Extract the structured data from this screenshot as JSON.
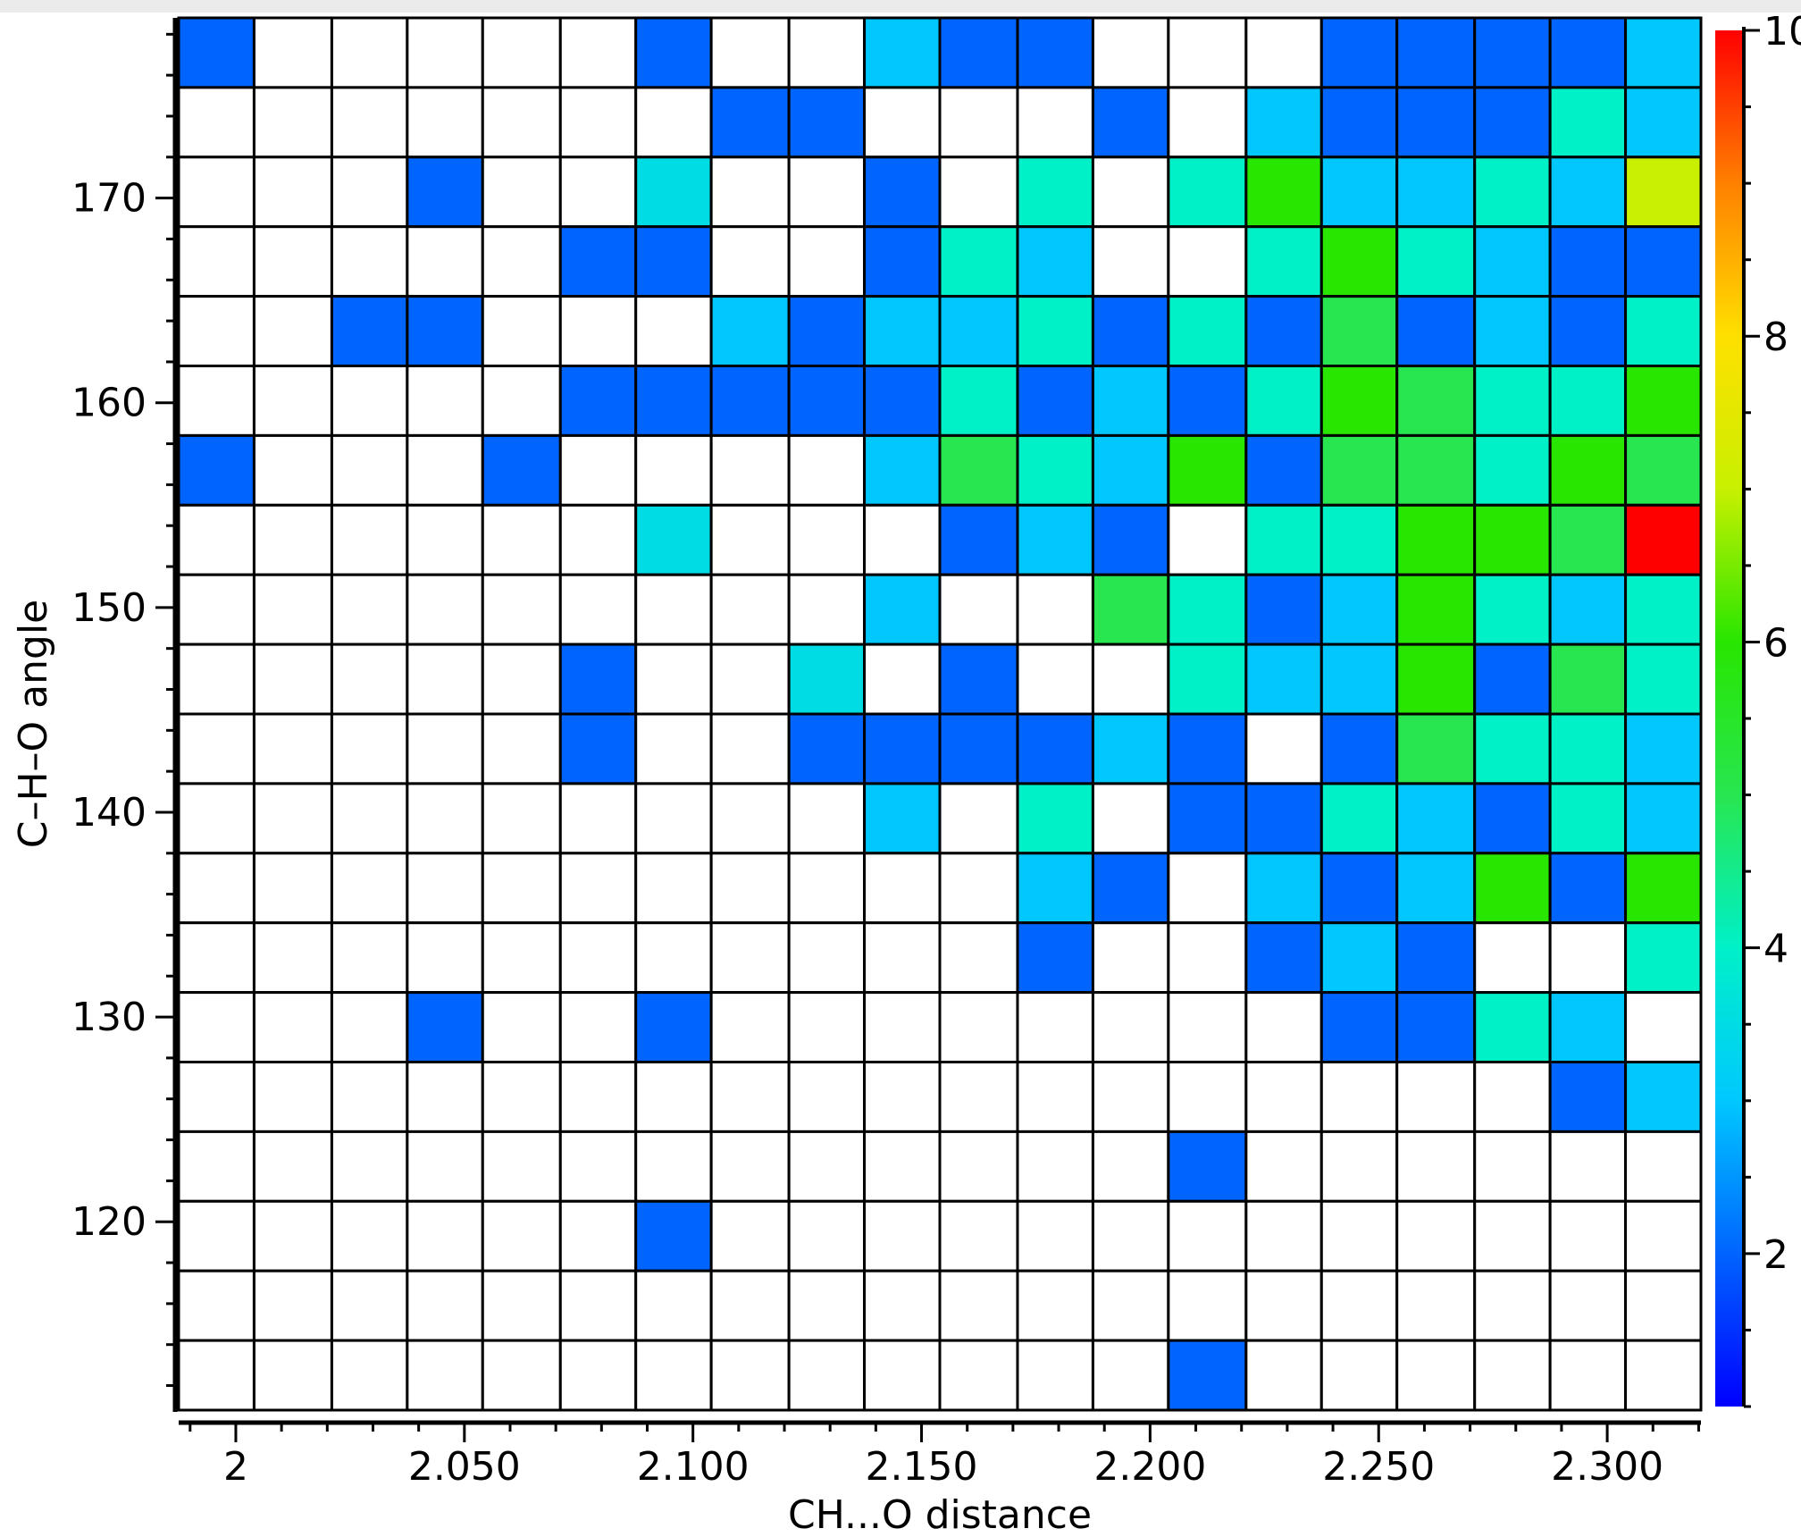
{
  "chart_data": {
    "type": "heatmap",
    "title": "",
    "xlabel": "CH...O distance",
    "ylabel": "C–H–O angle",
    "x_ticks": [
      {
        "value": 2.0,
        "label": "2"
      },
      {
        "value": 2.05,
        "label": "2.050"
      },
      {
        "value": 2.1,
        "label": "2.100"
      },
      {
        "value": 2.15,
        "label": "2.150"
      },
      {
        "value": 2.2,
        "label": "2.200"
      },
      {
        "value": 2.25,
        "label": "2.250"
      },
      {
        "value": 2.3,
        "label": "2.300"
      }
    ],
    "y_ticks": [
      {
        "value": 120,
        "label": "120"
      },
      {
        "value": 130,
        "label": "130"
      },
      {
        "value": 140,
        "label": "140"
      },
      {
        "value": 150,
        "label": "150"
      },
      {
        "value": 160,
        "label": "160"
      },
      {
        "value": 170,
        "label": "170"
      }
    ],
    "x_range": [
      1.9875,
      2.3205
    ],
    "y_range": [
      110.8,
      178.8
    ],
    "x_bin_edges": [
      1.9875,
      2.004,
      2.021,
      2.0375,
      2.054,
      2.071,
      2.0875,
      2.104,
      2.121,
      2.1375,
      2.154,
      2.171,
      2.1875,
      2.204,
      2.221,
      2.2375,
      2.254,
      2.271,
      2.2875,
      2.304,
      2.3205
    ],
    "y_bin_edges": [
      178.8,
      175.4,
      172.0,
      168.6,
      165.2,
      161.8,
      158.4,
      155.0,
      151.6,
      148.2,
      144.8,
      141.4,
      138.0,
      134.6,
      131.2,
      127.8,
      124.4,
      121.0,
      117.6,
      114.2,
      110.8
    ],
    "rows_top_to_bottom": [
      [
        2,
        0,
        0,
        0,
        0,
        0,
        2,
        0,
        0,
        3,
        2,
        2,
        0,
        0,
        0,
        2,
        2,
        2,
        2,
        3
      ],
      [
        0,
        0,
        0,
        0,
        0,
        0,
        0,
        2,
        2,
        0,
        0,
        0,
        2,
        0,
        3,
        2,
        2,
        2,
        4,
        3
      ],
      [
        0,
        0,
        0,
        2,
        0,
        0,
        3.5,
        0,
        0,
        2,
        0,
        4,
        0,
        4,
        6,
        3,
        3,
        4,
        3,
        7
      ],
      [
        0,
        0,
        0,
        0,
        0,
        2,
        2,
        0,
        0,
        2,
        4,
        3,
        0,
        0,
        4,
        6,
        4,
        3,
        2,
        2
      ],
      [
        0,
        0,
        2,
        2,
        0,
        0,
        0,
        3,
        2,
        3,
        3,
        4,
        2,
        4,
        2,
        5,
        2,
        3,
        2,
        4
      ],
      [
        0,
        0,
        0,
        0,
        0,
        2,
        2,
        2,
        2,
        2,
        4,
        2,
        3,
        2,
        4,
        6,
        5,
        4,
        4,
        6
      ],
      [
        2,
        0,
        0,
        0,
        2,
        0,
        0,
        0,
        0,
        3,
        5,
        4,
        3,
        6,
        2,
        5,
        5,
        4,
        6,
        5
      ],
      [
        0,
        0,
        0,
        0,
        0,
        0,
        3.5,
        0,
        0,
        0,
        2,
        3,
        2,
        0,
        4,
        4,
        6,
        6,
        5,
        10
      ],
      [
        0,
        0,
        0,
        0,
        0,
        0,
        0,
        0,
        0,
        3,
        0,
        0,
        5,
        4,
        2,
        3,
        6,
        4,
        3,
        4
      ],
      [
        0,
        0,
        0,
        0,
        0,
        2,
        0,
        0,
        3.5,
        0,
        2,
        0,
        0,
        4,
        3,
        3,
        6,
        2,
        5,
        4
      ],
      [
        0,
        0,
        0,
        0,
        0,
        2,
        0,
        0,
        2,
        2,
        2,
        2,
        3,
        2,
        0,
        2,
        5,
        4,
        4,
        3
      ],
      [
        0,
        0,
        0,
        0,
        0,
        0,
        0,
        0,
        0,
        3,
        0,
        4,
        0,
        2,
        2,
        4,
        3,
        2,
        4,
        3
      ],
      [
        0,
        0,
        0,
        0,
        0,
        0,
        0,
        0,
        0,
        0,
        0,
        3,
        2,
        0,
        3,
        2,
        3,
        6,
        2,
        6
      ],
      [
        0,
        0,
        0,
        0,
        0,
        0,
        0,
        0,
        0,
        0,
        0,
        2,
        0,
        0,
        2,
        3,
        2,
        0,
        0,
        4
      ],
      [
        0,
        0,
        0,
        2,
        0,
        0,
        2,
        0,
        0,
        0,
        0,
        0,
        0,
        0,
        0,
        2,
        2,
        4,
        3,
        0
      ],
      [
        0,
        0,
        0,
        0,
        0,
        0,
        0,
        0,
        0,
        0,
        0,
        0,
        0,
        0,
        0,
        0,
        0,
        0,
        2,
        3
      ],
      [
        0,
        0,
        0,
        0,
        0,
        0,
        0,
        0,
        0,
        0,
        0,
        0,
        0,
        2,
        0,
        0,
        0,
        0,
        0,
        0
      ],
      [
        0,
        0,
        0,
        0,
        0,
        0,
        2,
        0,
        0,
        0,
        0,
        0,
        0,
        0,
        0,
        0,
        0,
        0,
        0,
        0
      ],
      [
        0,
        0,
        0,
        0,
        0,
        0,
        0,
        0,
        0,
        0,
        0,
        0,
        0,
        0,
        0,
        0,
        0,
        0,
        0,
        0
      ],
      [
        0,
        0,
        0,
        0,
        0,
        0,
        0,
        0,
        0,
        0,
        0,
        0,
        0,
        2,
        0,
        0,
        0,
        0,
        0,
        0
      ]
    ],
    "colorbar": {
      "range": [
        1,
        10
      ],
      "ticks": [
        {
          "value": 2,
          "label": "2"
        },
        {
          "value": 4,
          "label": "4"
        },
        {
          "value": 6,
          "label": "6"
        },
        {
          "value": 8,
          "label": "8"
        },
        {
          "value": 10,
          "label": "10"
        }
      ],
      "colormap": [
        {
          "value": 1,
          "color": "#0000ff"
        },
        {
          "value": 2,
          "color": "#0064ff"
        },
        {
          "value": 3,
          "color": "#00c8ff"
        },
        {
          "value": 4,
          "color": "#00f0c8"
        },
        {
          "value": 5,
          "color": "#28e650"
        },
        {
          "value": 6,
          "color": "#28e600"
        },
        {
          "value": 7,
          "color": "#c8f000"
        },
        {
          "value": 8,
          "color": "#ffe000"
        },
        {
          "value": 9,
          "color": "#ff8000"
        },
        {
          "value": 10,
          "color": "#ff0000"
        }
      ]
    },
    "empty_color": "#ffffff",
    "grid": true,
    "legend": "colorbar-right"
  }
}
